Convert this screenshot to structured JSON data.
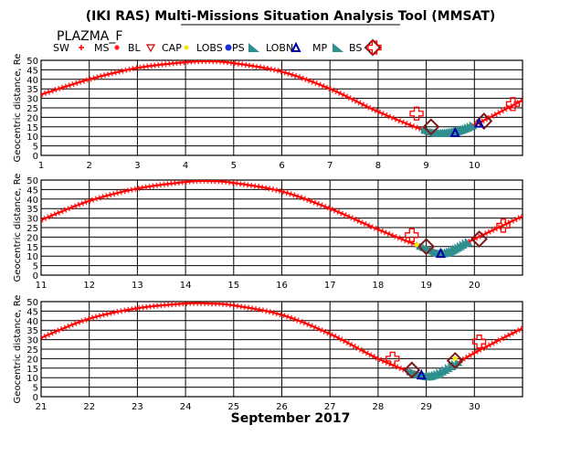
{
  "header": {
    "title": "(IKI RAS) Multi-Missions Situation Analysis Tool (MMSAT)",
    "mission": "PLAZMA_F",
    "legend": [
      {
        "label": "SW",
        "color": "#ff0000",
        "icon": "plus-icon"
      },
      {
        "label": "MS",
        "color": "#ff0000",
        "icon": "star-icon"
      },
      {
        "label": "BL",
        "color": "#cc0000",
        "icon": "triangle-down-icon"
      },
      {
        "label": "CAP",
        "color": "#f2e600",
        "icon": "dot-icon"
      },
      {
        "label": "LOBS",
        "color": "#1a2fd6",
        "icon": "circle-icon"
      },
      {
        "label": "PS",
        "color": "#2f8f8f",
        "icon": "wedge-icon"
      },
      {
        "label": "LOBN",
        "color": "#0000aa",
        "icon": "triangle-up-icon"
      },
      {
        "label": "MP",
        "color": "#2f8f8f",
        "icon": "wedge-icon"
      },
      {
        "label": "BS",
        "color": "#7a1a1a",
        "icon": "diamond-icon"
      },
      {
        "label": "",
        "color": "#ff0000",
        "icon": "open-cross-icon"
      }
    ]
  },
  "footer": {
    "xlabel": "September 2017"
  },
  "chart_data": [
    {
      "type": "line",
      "ylabel": "Geocentric distance, Re",
      "ylim": [
        0,
        50
      ],
      "yticks": [
        0,
        5,
        10,
        15,
        20,
        25,
        30,
        35,
        40,
        45,
        50
      ],
      "xlim": [
        1,
        11
      ],
      "xticks": [
        "1",
        "2",
        "3",
        "4",
        "5",
        "6",
        "7",
        "8",
        "9",
        "10"
      ],
      "x": [
        1,
        2,
        3,
        4,
        4.5,
        5,
        6,
        7,
        8,
        9,
        9.5,
        10,
        11
      ],
      "y": [
        32,
        40,
        46,
        49,
        49.5,
        48.5,
        44,
        35,
        23,
        13,
        12,
        16,
        29
      ],
      "markers": [
        {
          "kind": "BS",
          "x": 9.1,
          "y": 15
        },
        {
          "kind": "BS",
          "x": 10.2,
          "y": 18
        },
        {
          "kind": "SW",
          "x": 8.8,
          "y": 22
        },
        {
          "kind": "SW",
          "x": 10.8,
          "y": 27
        },
        {
          "kind": "LOBN",
          "x": 9.6,
          "y": 12
        },
        {
          "kind": "LOBN",
          "x": 10.1,
          "y": 17
        }
      ]
    },
    {
      "type": "line",
      "ylabel": "Geocentric distance, Re",
      "ylim": [
        0,
        50
      ],
      "yticks": [
        0,
        5,
        10,
        15,
        20,
        25,
        30,
        35,
        40,
        45,
        50
      ],
      "xlim": [
        11,
        21
      ],
      "xticks": [
        "11",
        "12",
        "13",
        "14",
        "15",
        "16",
        "17",
        "18",
        "19",
        "20"
      ],
      "x": [
        11,
        12,
        13,
        14,
        14.5,
        15,
        16,
        17,
        18,
        19,
        19.4,
        20,
        21
      ],
      "y": [
        29,
        39,
        45.5,
        49,
        49.5,
        48.5,
        44,
        35,
        24,
        14,
        11.5,
        19,
        31
      ],
      "markers": [
        {
          "kind": "BS",
          "x": 19.0,
          "y": 15
        },
        {
          "kind": "BS",
          "x": 20.1,
          "y": 19
        },
        {
          "kind": "SW",
          "x": 18.7,
          "y": 21
        },
        {
          "kind": "SW",
          "x": 20.6,
          "y": 26
        },
        {
          "kind": "LOBN",
          "x": 19.3,
          "y": 11.5
        },
        {
          "kind": "CAP",
          "x": 18.8,
          "y": 16
        }
      ]
    },
    {
      "type": "line",
      "ylabel": "Geocentric distance, Re",
      "ylim": [
        0,
        50
      ],
      "yticks": [
        0,
        5,
        10,
        15,
        20,
        25,
        30,
        35,
        40,
        45,
        50
      ],
      "xlim": [
        21,
        31
      ],
      "xticks": [
        "21",
        "22",
        "23",
        "24",
        "25",
        "26",
        "27",
        "28",
        "29",
        "30"
      ],
      "x": [
        21,
        22,
        23,
        24,
        24.5,
        25,
        26,
        27,
        28,
        28.8,
        29.2,
        30,
        31
      ],
      "y": [
        31,
        41,
        46.5,
        49,
        49,
        48,
        43,
        33,
        20,
        12,
        11.5,
        23,
        36
      ],
      "markers": [
        {
          "kind": "BS",
          "x": 28.7,
          "y": 14
        },
        {
          "kind": "BS",
          "x": 29.6,
          "y": 19
        },
        {
          "kind": "SW",
          "x": 28.3,
          "y": 20
        },
        {
          "kind": "SW",
          "x": 30.1,
          "y": 29
        },
        {
          "kind": "LOBN",
          "x": 28.9,
          "y": 11.5
        },
        {
          "kind": "CAP",
          "x": 29.6,
          "y": 20
        }
      ]
    }
  ]
}
